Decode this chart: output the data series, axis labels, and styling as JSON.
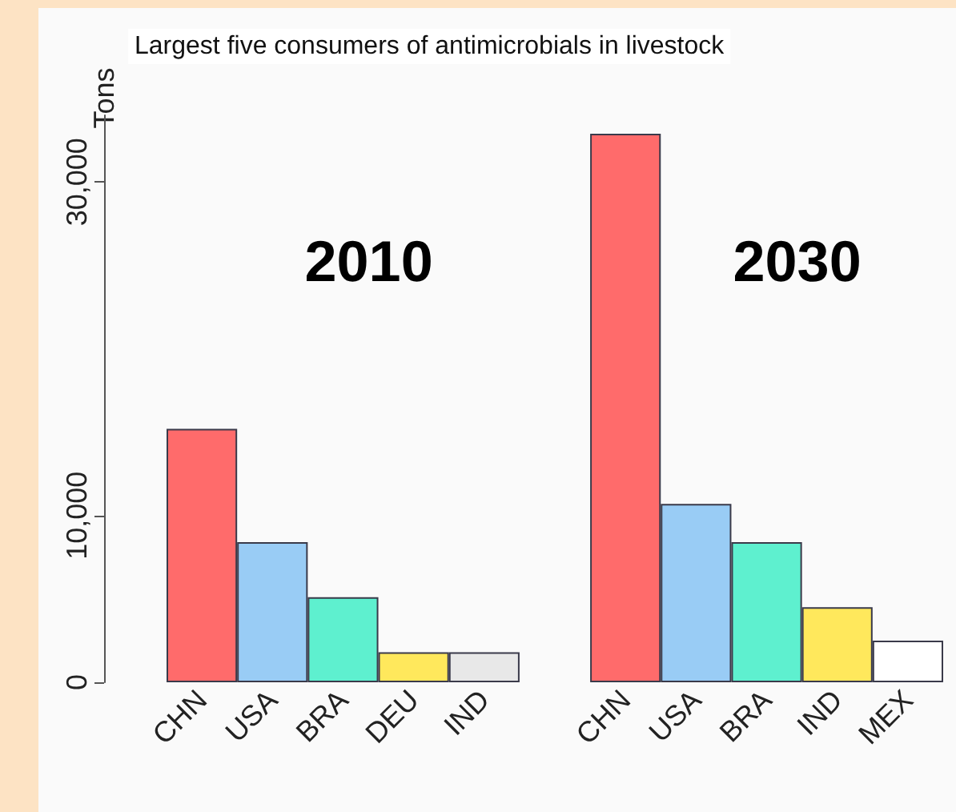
{
  "chart_data": {
    "type": "bar",
    "title": "Largest five consumers of antimicrobials in livestock",
    "ylabel": "Tons",
    "annotations": [
      "2010",
      "2030"
    ],
    "categories": [
      "CHN",
      "USA",
      "BRA",
      "DEU",
      "IND",
      null,
      "CHN",
      "USA",
      "BRA",
      "IND",
      "MEX"
    ],
    "values": [
      15200,
      8400,
      5100,
      1800,
      1800,
      null,
      32900,
      10700,
      8400,
      4500,
      2500
    ],
    "colors": [
      "#ff6b6b",
      "#99ccf5",
      "#5ef0cf",
      "#ffe85c",
      "#e8e8e8",
      null,
      "#ff6b6b",
      "#99ccf5",
      "#5ef0cf",
      "#ffe85c",
      "#ffffff"
    ],
    "ylim": [
      0,
      34000
    ],
    "yticks": [
      0,
      {
        "value": 10000,
        "label": "10,000"
      },
      {
        "value": 30000,
        "label": "30,000"
      }
    ],
    "grid": false
  }
}
